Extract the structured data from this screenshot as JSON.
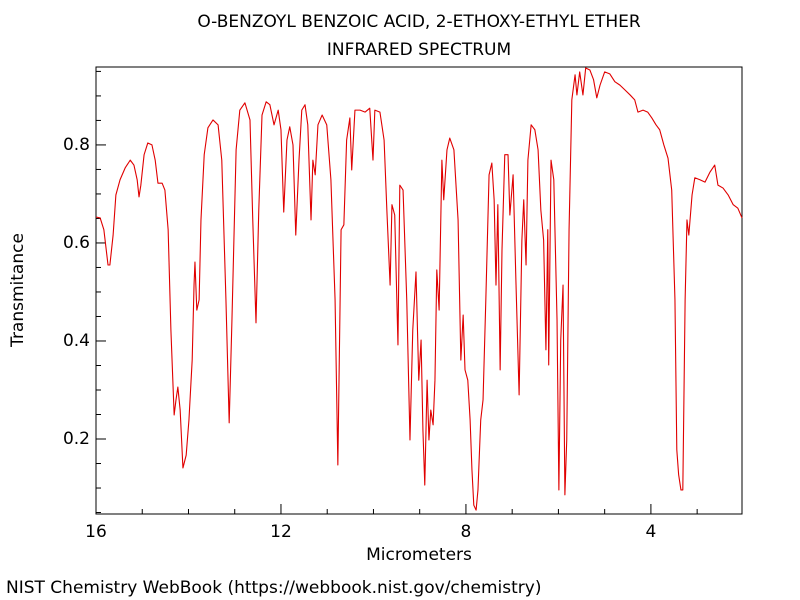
{
  "chart_data": {
    "type": "line",
    "title": "O-BENZOYL BENZOIC ACID, 2-ETHOXY-ETHYL ETHER",
    "subtitle": "INFRARED SPECTRUM",
    "xlabel": "Micrometers",
    "ylabel": "Transmitance",
    "source": "NIST Chemistry WebBook (https://webbook.nist.gov/chemistry)",
    "color": "#e00000",
    "xlim": [
      16,
      2.03
    ],
    "ylim": [
      0.047,
      0.959
    ],
    "xticks": [
      16,
      12,
      8,
      4
    ],
    "yticks": [
      0.2,
      0.4,
      0.6,
      0.8
    ],
    "xminorticks": [
      15,
      14,
      13,
      11,
      10,
      9,
      7,
      6,
      5,
      3
    ],
    "yminorticks": [
      0.05,
      0.1,
      0.15,
      0.25,
      0.3,
      0.35,
      0.45,
      0.5,
      0.55,
      0.65,
      0.7,
      0.75,
      0.85,
      0.9,
      0.95
    ],
    "x": [
      16,
      15.91,
      15.83,
      15.74,
      15.7,
      15.63,
      15.57,
      15.48,
      15.37,
      15.26,
      15.18,
      15.11,
      15.07,
      15.03,
      14.96,
      14.88,
      14.79,
      14.72,
      14.66,
      14.57,
      14.51,
      14.44,
      14.38,
      14.31,
      14.27,
      14.23,
      14.18,
      14.12,
      14.05,
      13.99,
      13.92,
      13.88,
      13.86,
      13.82,
      13.77,
      13.73,
      13.66,
      13.58,
      13.47,
      13.36,
      13.28,
      13.19,
      13.12,
      13.06,
      12.97,
      12.89,
      12.78,
      12.67,
      12.61,
      12.54,
      12.48,
      12.41,
      12.32,
      12.24,
      12.15,
      12.06,
      12.0,
      11.94,
      11.87,
      11.81,
      11.74,
      11.68,
      11.61,
      11.55,
      11.48,
      11.42,
      11.35,
      11.31,
      11.26,
      11.2,
      11.11,
      11.01,
      10.92,
      10.83,
      10.77,
      10.7,
      10.64,
      10.58,
      10.51,
      10.47,
      10.4,
      10.29,
      10.18,
      10.08,
      10.01,
      9.97,
      9.86,
      9.77,
      9.71,
      9.64,
      9.6,
      9.54,
      9.47,
      9.43,
      9.36,
      9.28,
      9.21,
      9.15,
      9.08,
      9.02,
      8.97,
      8.93,
      8.89,
      8.84,
      8.8,
      8.76,
      8.71,
      8.67,
      8.63,
      8.58,
      8.52,
      8.48,
      8.41,
      8.35,
      8.26,
      8.17,
      8.11,
      8.06,
      8.02,
      7.96,
      7.91,
      7.87,
      7.83,
      7.78,
      7.74,
      7.68,
      7.63,
      7.57,
      7.5,
      7.44,
      7.39,
      7.35,
      7.31,
      7.26,
      7.22,
      7.16,
      7.09,
      7.05,
      6.98,
      6.92,
      6.85,
      6.79,
      6.75,
      6.7,
      6.66,
      6.59,
      6.51,
      6.44,
      6.38,
      6.32,
      6.27,
      6.23,
      6.21,
      6.16,
      6.1,
      6.03,
      5.99,
      5.95,
      5.9,
      5.86,
      5.82,
      5.77,
      5.71,
      5.64,
      5.6,
      5.54,
      5.47,
      5.41,
      5.32,
      5.24,
      5.17,
      5.1,
      5.0,
      4.89,
      4.78,
      4.67,
      4.56,
      4.45,
      4.35,
      4.28,
      4.17,
      4.07,
      3.98,
      3.89,
      3.81,
      3.72,
      3.63,
      3.55,
      3.48,
      3.44,
      3.4,
      3.35,
      3.31,
      3.26,
      3.22,
      3.18,
      3.11,
      3.05,
      2.94,
      2.83,
      2.72,
      2.62,
      2.55,
      2.44,
      2.33,
      2.22,
      2.12,
      2.03
    ],
    "values": [
      0.653,
      0.651,
      0.627,
      0.555,
      0.555,
      0.616,
      0.698,
      0.729,
      0.753,
      0.769,
      0.759,
      0.729,
      0.694,
      0.718,
      0.78,
      0.804,
      0.8,
      0.769,
      0.722,
      0.722,
      0.708,
      0.627,
      0.422,
      0.249,
      0.28,
      0.306,
      0.259,
      0.141,
      0.167,
      0.239,
      0.361,
      0.514,
      0.561,
      0.463,
      0.484,
      0.647,
      0.78,
      0.835,
      0.851,
      0.841,
      0.769,
      0.484,
      0.233,
      0.443,
      0.79,
      0.871,
      0.886,
      0.851,
      0.647,
      0.437,
      0.667,
      0.861,
      0.888,
      0.882,
      0.841,
      0.871,
      0.831,
      0.663,
      0.81,
      0.837,
      0.8,
      0.616,
      0.769,
      0.871,
      0.882,
      0.841,
      0.647,
      0.769,
      0.739,
      0.841,
      0.861,
      0.841,
      0.729,
      0.484,
      0.147,
      0.627,
      0.637,
      0.81,
      0.855,
      0.749,
      0.871,
      0.871,
      0.867,
      0.875,
      0.769,
      0.871,
      0.867,
      0.81,
      0.667,
      0.514,
      0.678,
      0.657,
      0.392,
      0.718,
      0.708,
      0.484,
      0.198,
      0.422,
      0.541,
      0.32,
      0.402,
      0.218,
      0.106,
      0.32,
      0.198,
      0.259,
      0.229,
      0.32,
      0.545,
      0.463,
      0.769,
      0.688,
      0.79,
      0.814,
      0.79,
      0.647,
      0.361,
      0.453,
      0.341,
      0.32,
      0.239,
      0.137,
      0.065,
      0.055,
      0.096,
      0.239,
      0.28,
      0.484,
      0.739,
      0.763,
      0.688,
      0.514,
      0.678,
      0.341,
      0.586,
      0.78,
      0.78,
      0.657,
      0.739,
      0.525,
      0.29,
      0.606,
      0.688,
      0.555,
      0.769,
      0.841,
      0.831,
      0.79,
      0.667,
      0.606,
      0.382,
      0.627,
      0.351,
      0.769,
      0.729,
      0.443,
      0.096,
      0.402,
      0.514,
      0.086,
      0.198,
      0.627,
      0.892,
      0.943,
      0.902,
      0.949,
      0.902,
      0.957,
      0.953,
      0.933,
      0.896,
      0.922,
      0.949,
      0.945,
      0.929,
      0.922,
      0.912,
      0.902,
      0.892,
      0.867,
      0.871,
      0.867,
      0.855,
      0.841,
      0.831,
      0.8,
      0.773,
      0.708,
      0.484,
      0.178,
      0.127,
      0.096,
      0.096,
      0.484,
      0.647,
      0.616,
      0.698,
      0.733,
      0.729,
      0.724,
      0.745,
      0.759,
      0.718,
      0.712,
      0.698,
      0.678,
      0.671,
      0.651
    ]
  }
}
